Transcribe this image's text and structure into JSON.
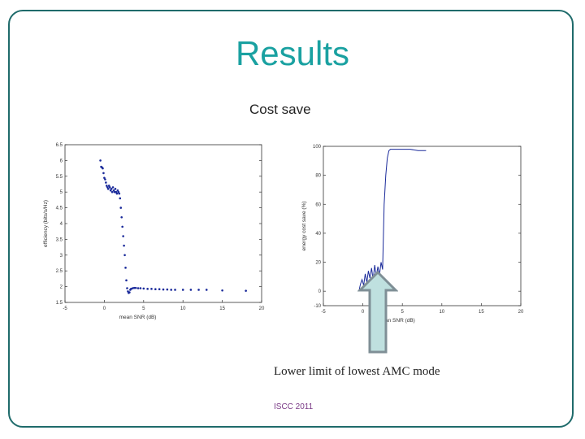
{
  "slide": {
    "title": "Results",
    "subtitle": "Cost save",
    "caption": "Lower limit of lowest AMC mode",
    "footer": "ISCC 2011",
    "accent_color": "#1aa1a1",
    "frame_color": "#1f6b6b",
    "arrow_fill": "#bfe0df",
    "arrow_stroke": "#7f8f96"
  },
  "chart_data": [
    {
      "type": "scatter",
      "title": "",
      "xlabel": "mean SNR (dB)",
      "ylabel": "efficiency (bits/s/Hz)",
      "xlim": [
        -5,
        20
      ],
      "ylim": [
        1.5,
        6.5
      ],
      "xticks": [
        "-5",
        "0",
        "5",
        "10",
        "15",
        "20"
      ],
      "yticks": [
        "1.5",
        "2",
        "2.5",
        "3",
        "3.5",
        "4",
        "4.5",
        "5",
        "5.5",
        "6",
        "6.5"
      ],
      "marker_color": "#1a2a9a",
      "series": [
        {
          "x": [
            -0.5,
            -0.4,
            -0.3,
            -0.2,
            -0.1,
            0,
            0.1,
            0.2,
            0.3,
            0.4,
            0.5,
            0.6,
            0.7,
            0.8,
            0.9,
            1,
            1.1,
            1.2,
            1.3,
            1.4,
            1.5,
            1.6,
            1.7,
            1.8,
            1.9,
            2,
            2.1,
            2.2,
            2.3,
            2.4,
            2.5,
            2.6,
            2.7,
            2.8,
            2.9,
            3,
            3.1,
            3.2,
            3.3,
            3.4,
            3.6,
            3.8,
            4,
            4.3,
            4.6,
            5,
            5.5,
            6,
            6.5,
            7,
            7.5,
            8,
            8.5,
            9,
            10,
            11,
            12,
            13,
            15,
            18
          ],
          "y": [
            6.0,
            5.8,
            5.78,
            5.75,
            5.6,
            5.45,
            5.4,
            5.3,
            5.2,
            5.15,
            5.1,
            5.2,
            5.15,
            5.05,
            5.1,
            5.0,
            5.15,
            5.05,
            5.0,
            5.1,
            5.0,
            4.95,
            5.05,
            5.0,
            4.95,
            4.8,
            4.5,
            4.2,
            3.9,
            3.6,
            3.3,
            3.0,
            2.6,
            2.2,
            1.95,
            1.85,
            1.8,
            1.82,
            1.9,
            1.93,
            1.95,
            1.96,
            1.96,
            1.95,
            1.95,
            1.94,
            1.93,
            1.93,
            1.92,
            1.92,
            1.91,
            1.91,
            1.9,
            1.9,
            1.9,
            1.9,
            1.9,
            1.9,
            1.88,
            1.87
          ]
        }
      ]
    },
    {
      "type": "line",
      "title": "",
      "xlabel": "mean SNR (dB)",
      "ylabel": "energy cost save (%)",
      "xlim": [
        -5,
        20
      ],
      "ylim": [
        -10,
        100
      ],
      "xticks": [
        "-5",
        "0",
        "5",
        "10",
        "15",
        "20"
      ],
      "yticks": [
        "-10",
        "0",
        "20",
        "40",
        "60",
        "80",
        "100"
      ],
      "line_color": "#1a2a9a",
      "series": [
        {
          "x": [
            -0.5,
            -0.3,
            -0.1,
            0.1,
            0.3,
            0.5,
            0.7,
            0.9,
            1.1,
            1.3,
            1.5,
            1.7,
            1.9,
            2.1,
            2.3,
            2.5,
            2.7,
            2.9,
            3.1,
            3.3,
            3.5,
            3.8,
            4.2,
            5,
            6,
            7,
            8
          ],
          "y": [
            0,
            5,
            8,
            4,
            12,
            6,
            14,
            9,
            16,
            8,
            18,
            10,
            17,
            11,
            20,
            15,
            60,
            80,
            92,
            97,
            98,
            98,
            98,
            98,
            98,
            97,
            97
          ]
        }
      ]
    }
  ]
}
